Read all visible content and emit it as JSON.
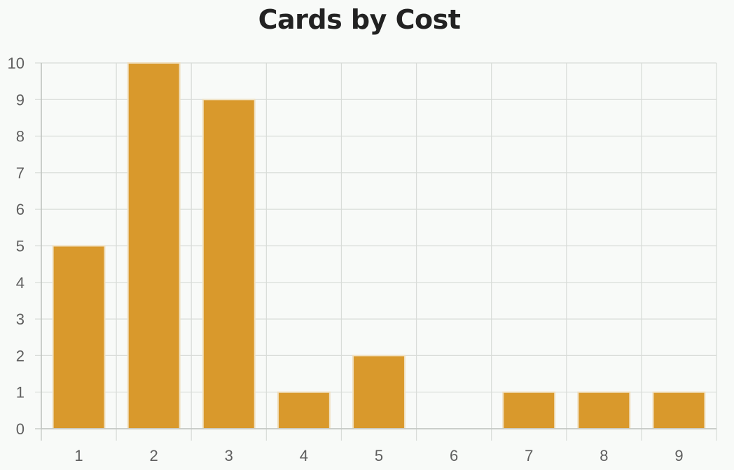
{
  "chart_data": {
    "type": "bar",
    "title": "Cards by Cost",
    "xlabel": "",
    "ylabel": "",
    "categories": [
      "1",
      "2",
      "3",
      "4",
      "5",
      "6",
      "7",
      "8",
      "9"
    ],
    "values": [
      5,
      10,
      9,
      1,
      2,
      0,
      1,
      1,
      1
    ],
    "ylim": [
      0,
      10
    ],
    "yticks": [
      0,
      1,
      2,
      3,
      4,
      5,
      6,
      7,
      8,
      9,
      10
    ],
    "grid": true,
    "legend": "none",
    "colors": {
      "bar_fill": "#d9992c",
      "bar_stroke": "#f0e0c0",
      "grid": "#d8dcd8",
      "axis": "#bfc4bf",
      "background": "#f8faf8"
    }
  }
}
